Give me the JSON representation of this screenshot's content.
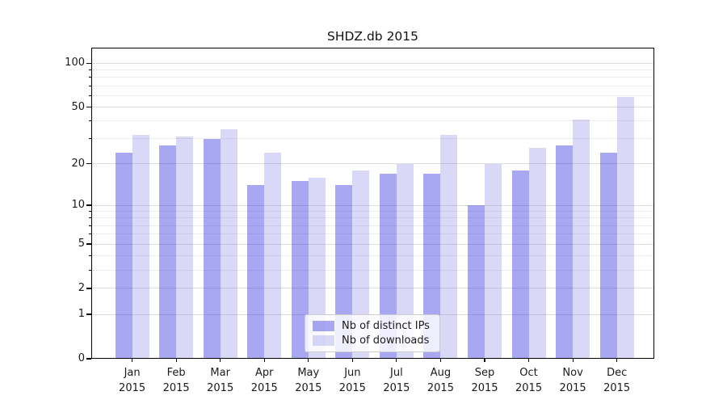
{
  "title": "SHDZ.db 2015",
  "legend": {
    "items": [
      {
        "label": "Nb of distinct IPs",
        "color": "rgba(48,48,224,0.42)"
      },
      {
        "label": "Nb of downloads",
        "color": "rgba(119,119,226,0.28)"
      }
    ],
    "position": "lower center"
  },
  "chart_data": {
    "type": "bar",
    "title": "SHDZ.db 2015",
    "categories": [
      "Jan",
      "Feb",
      "Mar",
      "Apr",
      "May",
      "Jun",
      "Jul",
      "Aug",
      "Sep",
      "Oct",
      "Nov",
      "Dec"
    ],
    "year_label": "2015",
    "series": [
      {
        "name": "Nb of distinct IPs",
        "color": "rgba(48,48,224,0.42)",
        "values": [
          24,
          27,
          30,
          14,
          15,
          14,
          17,
          17,
          10,
          18,
          27,
          24
        ]
      },
      {
        "name": "Nb of downloads",
        "color": "rgba(119,119,226,0.28)",
        "values": [
          32,
          31,
          35,
          24,
          16,
          18,
          20,
          32,
          20,
          26,
          41,
          59
        ]
      }
    ],
    "xlabel": "",
    "ylabel": "",
    "yscale": "log1p",
    "ylim": [
      0,
      128
    ],
    "yticks_major": [
      0,
      1,
      2,
      5,
      10,
      20,
      50,
      100
    ],
    "yticks_minor": [
      3,
      4,
      6,
      7,
      8,
      9,
      30,
      40,
      60,
      70,
      80,
      90
    ],
    "grid": true,
    "legend_position": "lower center"
  },
  "colors": {
    "grid_major": "#dcdcdc",
    "grid_minor": "#ececec",
    "axis": "#000000",
    "background": "#ffffff"
  }
}
